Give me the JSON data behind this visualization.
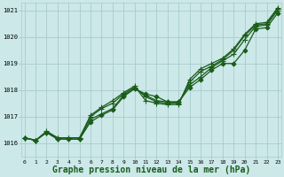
{
  "background_color": "#cce8e8",
  "grid_color": "#aacccc",
  "line_color": "#1a5c1a",
  "xlabel": "Graphe pression niveau de la mer (hPa)",
  "xlabel_fontsize": 7,
  "ylim": [
    1015.5,
    1021.3
  ],
  "xlim": [
    -0.3,
    23.3
  ],
  "yticks": [
    1016,
    1017,
    1018,
    1019,
    1020,
    1021
  ],
  "xtick_labels": [
    "0",
    "1",
    "2",
    "3",
    "4",
    "5",
    "6",
    "7",
    "8",
    "9",
    "10",
    "11",
    "12",
    "13",
    "14",
    "15",
    "16",
    "17",
    "18",
    "19",
    "20",
    "21",
    "22",
    "23"
  ],
  "series": [
    {
      "y": [
        1016.2,
        1016.1,
        1016.4,
        1016.15,
        1016.15,
        1016.15,
        1016.8,
        1017.05,
        1017.25,
        1017.75,
        1018.05,
        1017.85,
        1017.75,
        1017.55,
        1017.55,
        1018.1,
        1018.4,
        1018.75,
        1019.0,
        1019.0,
        1019.5,
        1020.3,
        1020.35,
        1020.9
      ],
      "marker": "D",
      "markersize": 2.5,
      "lw": 0.9
    },
    {
      "y": [
        1016.2,
        1016.1,
        1016.4,
        1016.15,
        1016.15,
        1016.15,
        1016.9,
        1017.1,
        1017.3,
        1017.8,
        1018.05,
        1017.8,
        1017.6,
        1017.55,
        1017.55,
        1018.2,
        1018.5,
        1018.85,
        1019.1,
        1019.35,
        1019.9,
        1020.4,
        1020.45,
        1021.0
      ],
      "marker": "+",
      "markersize": 4,
      "lw": 0.9
    },
    {
      "y": [
        1016.2,
        1016.1,
        1016.4,
        1016.2,
        1016.2,
        1016.2,
        1017.0,
        1017.3,
        1017.5,
        1017.85,
        1018.1,
        1017.75,
        1017.55,
        1017.5,
        1017.5,
        1018.3,
        1018.7,
        1018.9,
        1019.15,
        1019.5,
        1020.05,
        1020.45,
        1020.5,
        1021.05
      ],
      "marker": "+",
      "markersize": 4,
      "lw": 0.9
    },
    {
      "y": [
        1016.2,
        1016.1,
        1016.45,
        1016.2,
        1016.2,
        1016.2,
        1017.05,
        1017.35,
        1017.6,
        1017.9,
        1018.15,
        1017.6,
        1017.5,
        1017.45,
        1017.45,
        1018.4,
        1018.8,
        1019.0,
        1019.2,
        1019.55,
        1020.1,
        1020.5,
        1020.55,
        1021.1
      ],
      "marker": "+",
      "markersize": 4,
      "lw": 0.9
    }
  ]
}
